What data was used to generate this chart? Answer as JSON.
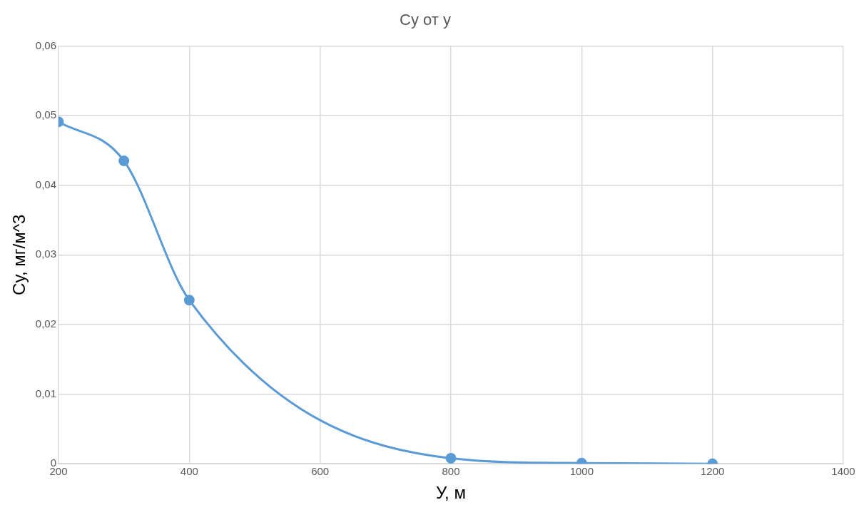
{
  "chart_data": {
    "type": "line",
    "title": "Су от у",
    "xlabel": "У, м",
    "ylabel": "Су, мг/м^3",
    "x": [
      200,
      300,
      400,
      800,
      1000,
      1200
    ],
    "series": [
      {
        "color": "#5b9bd5",
        "values": [
          0.0491,
          0.0435,
          0.0235,
          0.0008,
          0.0001,
          0.0
        ]
      }
    ],
    "xlim": [
      200,
      1400
    ],
    "xticks": [
      200,
      400,
      600,
      800,
      1000,
      1200,
      1400
    ],
    "ylim": [
      0,
      0.06
    ],
    "yticks": [
      0,
      {
        "value": 0.01,
        "label": "0,01"
      },
      {
        "value": 0.02,
        "label": "0,02"
      },
      {
        "value": 0.03,
        "label": "0,03"
      },
      {
        "value": 0.04,
        "label": "0,04"
      },
      {
        "value": 0.05,
        "label": "0,05"
      },
      {
        "value": 0.06,
        "label": "0,06"
      }
    ],
    "grid": true,
    "legend": false,
    "marker": "circle",
    "line_style": "solid"
  }
}
